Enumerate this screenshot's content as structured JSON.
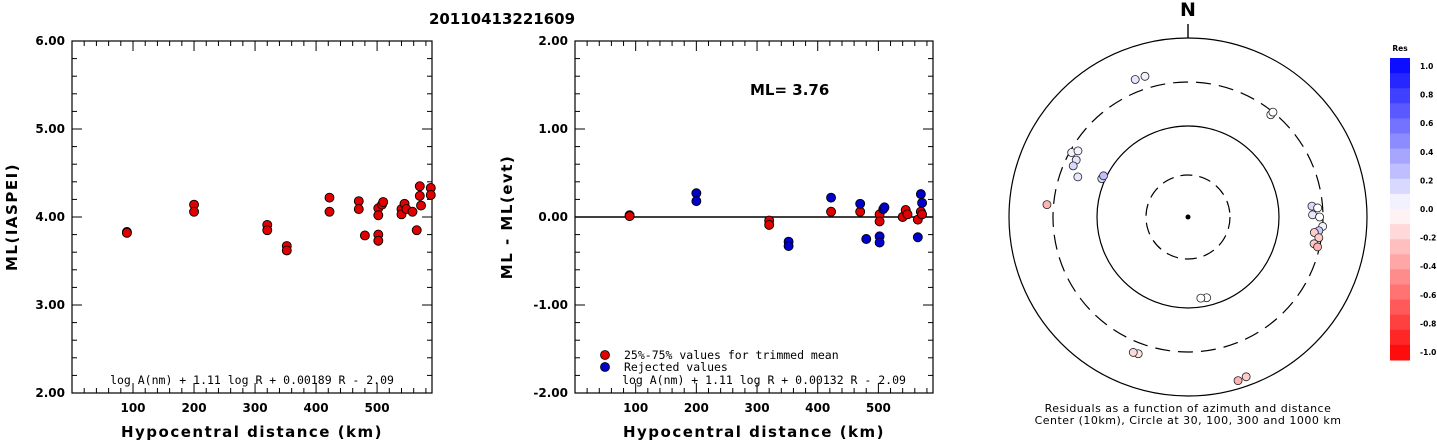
{
  "title": "20110413221609",
  "chart_data": [
    {
      "type": "scatter",
      "xlabel": "Hypocentral distance (km)",
      "ylabel": "ML(IASPEI)",
      "xlim": [
        0,
        590
      ],
      "ylim": [
        2.0,
        6.0
      ],
      "xticks": [
        "100",
        "200",
        "300",
        "400",
        "500"
      ],
      "yticks": [
        "2.00",
        "3.00",
        "4.00",
        "5.00",
        "6.00"
      ],
      "formula": "log A(nm) + 1.11 log R + 0.00189 R - 2.09",
      "series": [
        {
          "color": "#e00000",
          "points": [
            [
              90,
              3.83
            ],
            [
              90,
              3.82
            ],
            [
              200,
              4.14
            ],
            [
              200,
              4.06
            ],
            [
              320,
              3.91
            ],
            [
              320,
              3.85
            ],
            [
              352,
              3.67
            ],
            [
              352,
              3.62
            ],
            [
              422,
              4.22
            ],
            [
              422,
              4.06
            ],
            [
              470,
              4.18
            ],
            [
              470,
              4.09
            ],
            [
              480,
              3.79
            ],
            [
              502,
              4.1
            ],
            [
              502,
              4.02
            ],
            [
              502,
              3.8
            ],
            [
              502,
              3.73
            ],
            [
              508,
              4.14
            ],
            [
              510,
              4.17
            ],
            [
              540,
              4.09
            ],
            [
              540,
              4.03
            ],
            [
              545,
              4.15
            ],
            [
              548,
              4.09
            ],
            [
              558,
              4.06
            ],
            [
              565,
              3.85
            ],
            [
              570,
              4.35
            ],
            [
              570,
              4.24
            ],
            [
              572,
              4.13
            ],
            [
              588,
              4.33
            ],
            [
              588,
              4.25
            ]
          ]
        }
      ]
    },
    {
      "type": "scatter",
      "xlabel": "Hypocentral distance (km)",
      "ylabel": "ML - ML(evt)",
      "xlim": [
        0,
        590
      ],
      "ylim": [
        -2.0,
        2.0
      ],
      "xticks": [
        "100",
        "200",
        "300",
        "400",
        "500"
      ],
      "yticks": [
        "-2.00",
        "-1.00",
        "0.00",
        "1.00",
        "2.00"
      ],
      "annotation": "ML= 3.76",
      "formula": "log A(nm) + 1.11 log R + 0.00132 R - 2.09",
      "legend": [
        "25%-75% values for trimmed mean",
        "Rejected values"
      ],
      "legend_colors": [
        "#e00000",
        "#0000cc"
      ],
      "series": [
        {
          "name": "25%-75% values for trimmed mean",
          "color": "#e00000",
          "points": [
            [
              90,
              0.02
            ],
            [
              90,
              0.01
            ],
            [
              320,
              -0.04
            ],
            [
              320,
              -0.09
            ],
            [
              422,
              0.06
            ],
            [
              470,
              0.06
            ],
            [
              502,
              0.03
            ],
            [
              502,
              -0.05
            ],
            [
              540,
              0.0
            ],
            [
              545,
              0.08
            ],
            [
              548,
              0.03
            ],
            [
              565,
              -0.03
            ],
            [
              570,
              0.06
            ],
            [
              572,
              0.03
            ]
          ]
        },
        {
          "name": "Rejected values",
          "color": "#0000cc",
          "points": [
            [
              200,
              0.27
            ],
            [
              200,
              0.18
            ],
            [
              352,
              -0.28
            ],
            [
              352,
              -0.33
            ],
            [
              422,
              0.22
            ],
            [
              470,
              0.15
            ],
            [
              480,
              -0.25
            ],
            [
              502,
              -0.22
            ],
            [
              502,
              -0.29
            ],
            [
              508,
              0.09
            ],
            [
              510,
              0.11
            ],
            [
              565,
              -0.23
            ],
            [
              570,
              0.26
            ],
            [
              572,
              0.16
            ]
          ]
        }
      ]
    },
    {
      "type": "polar-scatter",
      "north_label": "N",
      "caption_line1": "Residuals as a function of azimuth and distance",
      "caption_line2": "Center (10km), Circle at 30, 100, 300 and 1000 km",
      "colorbar_title": "Res",
      "colorbar_ticks": [
        "1.0",
        "0.8",
        "0.6",
        "0.4",
        "0.2",
        "0.0",
        "-0.2",
        "-0.4",
        "-0.6",
        "-0.8",
        "-1.0"
      ],
      "stations": [
        {
          "az": 339,
          "r": 0.823,
          "res": 0.1
        },
        {
          "az": 343,
          "r": 0.822,
          "res": 0.05
        },
        {
          "az": 299,
          "r": 0.743,
          "res": 0.05
        },
        {
          "az": 301,
          "r": 0.717,
          "res": 0.05
        },
        {
          "az": 297,
          "r": 0.701,
          "res": 0.1
        },
        {
          "az": 294,
          "r": 0.702,
          "res": 0.15
        },
        {
          "az": 290,
          "r": 0.655,
          "res": 0.1
        },
        {
          "az": 294,
          "r": 0.527,
          "res": 0.15
        },
        {
          "az": 296,
          "r": 0.525,
          "res": 0.25
        },
        {
          "az": 275,
          "r": 0.791,
          "res": -0.3
        },
        {
          "az": 39,
          "r": 0.735,
          "res": 0.0
        },
        {
          "az": 39,
          "r": 0.754,
          "res": 0.0
        },
        {
          "az": 85,
          "r": 0.695,
          "res": 0.15
        },
        {
          "az": 86,
          "r": 0.726,
          "res": 0.0
        },
        {
          "az": 89,
          "r": 0.696,
          "res": 0.1
        },
        {
          "az": 90,
          "r": 0.735,
          "res": 0.0
        },
        {
          "az": 94,
          "r": 0.754,
          "res": 0.05
        },
        {
          "az": 96,
          "r": 0.735,
          "res": 0.2
        },
        {
          "az": 97,
          "r": 0.711,
          "res": -0.2
        },
        {
          "az": 99,
          "r": 0.74,
          "res": -0.2
        },
        {
          "az": 102,
          "r": 0.72,
          "res": -0.2
        },
        {
          "az": 103,
          "r": 0.743,
          "res": -0.3
        },
        {
          "az": 167,
          "r": 0.463,
          "res": 0.0
        },
        {
          "az": 171,
          "r": 0.459,
          "res": 0.0
        },
        {
          "az": 200,
          "r": 0.813,
          "res": -0.1
        },
        {
          "az": 202,
          "r": 0.816,
          "res": -0.15
        },
        {
          "az": 160,
          "r": 0.95,
          "res": -0.2
        },
        {
          "az": 163,
          "r": 0.956,
          "res": -0.3
        }
      ]
    }
  ]
}
